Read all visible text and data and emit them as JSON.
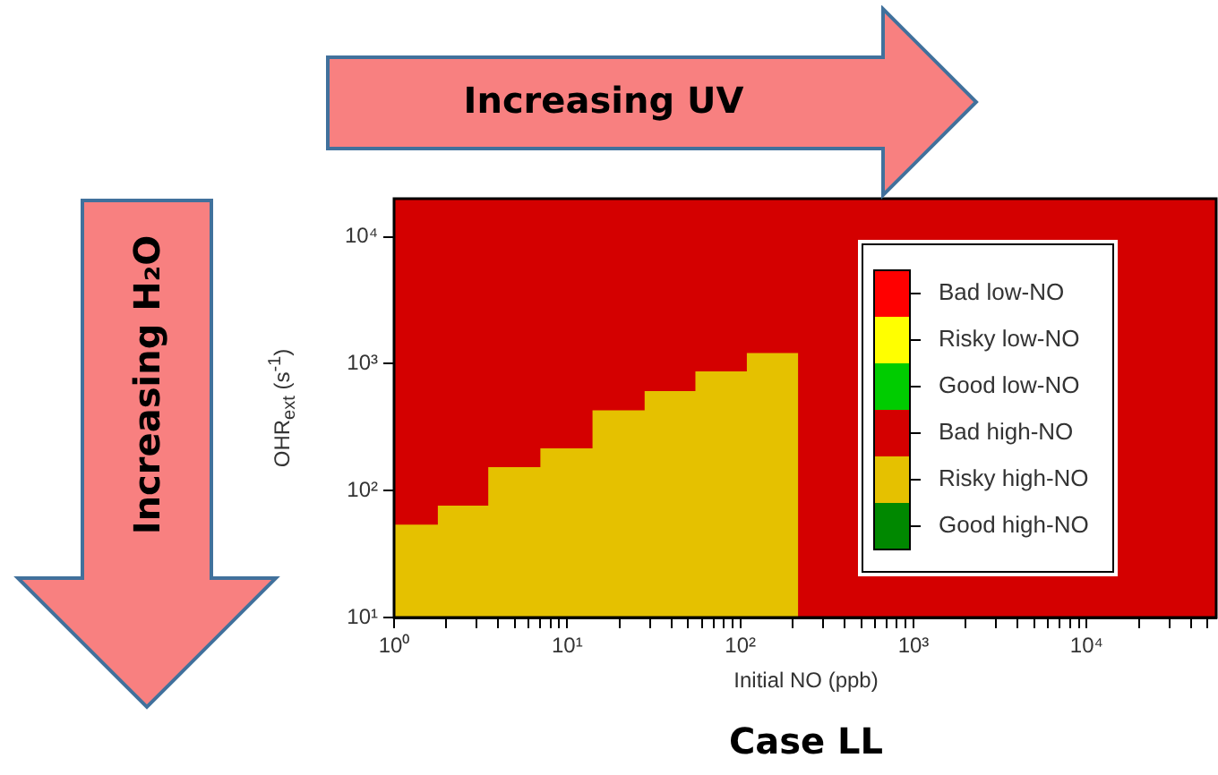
{
  "chart_data": {
    "type": "area",
    "title": "Case LL",
    "xlabel": "Initial NO (ppb)",
    "ylabel": "OHR$_{ext}$ (s$^{-1}$)",
    "annotations": [
      "Increasing UV",
      "Increasing H₂O"
    ],
    "log": "xy",
    "legend": "right",
    "xlim": [
      1,
      56000
    ],
    "ylim": [
      10,
      20000
    ],
    "xticks": [
      {
        "value": 1,
        "label": "10⁰"
      },
      {
        "value": 2,
        "label": null
      },
      {
        "value": 3,
        "label": null
      },
      {
        "value": 4,
        "label": null
      },
      {
        "value": 5,
        "label": null
      },
      {
        "value": 6,
        "label": null
      },
      {
        "value": 7,
        "label": null
      },
      {
        "value": 8,
        "label": null
      },
      {
        "value": 9,
        "label": null
      },
      {
        "value": 10,
        "label": "10¹"
      },
      {
        "value": 20,
        "label": null
      },
      {
        "value": 30,
        "label": null
      },
      {
        "value": 40,
        "label": null
      },
      {
        "value": 50,
        "label": null
      },
      {
        "value": 60,
        "label": null
      },
      {
        "value": 70,
        "label": null
      },
      {
        "value": 80,
        "label": null
      },
      {
        "value": 90,
        "label": null
      },
      {
        "value": 100,
        "label": "10²"
      },
      {
        "value": 200,
        "label": null
      },
      {
        "value": 300,
        "label": null
      },
      {
        "value": 400,
        "label": null
      },
      {
        "value": 500,
        "label": null
      },
      {
        "value": 600,
        "label": null
      },
      {
        "value": 700,
        "label": null
      },
      {
        "value": 800,
        "label": null
      },
      {
        "value": 900,
        "label": null
      },
      {
        "value": 1000,
        "label": "10³"
      },
      {
        "value": 2000,
        "label": null
      },
      {
        "value": 3000,
        "label": null
      },
      {
        "value": 4000,
        "label": null
      },
      {
        "value": 5000,
        "label": null
      },
      {
        "value": 6000,
        "label": null
      },
      {
        "value": 7000,
        "label": null
      },
      {
        "value": 8000,
        "label": null
      },
      {
        "value": 9000,
        "label": null
      },
      {
        "value": 10000,
        "label": "10⁴"
      },
      {
        "value": 20000,
        "label": null
      },
      {
        "value": 30000,
        "label": null
      },
      {
        "value": 40000,
        "label": null
      },
      {
        "value": 50000,
        "label": null
      }
    ],
    "yticks": [
      {
        "value": 10,
        "label": "10¹"
      },
      {
        "value": 100,
        "label": "10²"
      },
      {
        "value": 1000,
        "label": "10³"
      },
      {
        "value": 10000,
        "label": "10⁴"
      }
    ],
    "series": [
      {
        "name": "Bad low-NO",
        "color": "#ff0000"
      },
      {
        "name": "Risky low-NO",
        "color": "#ffff00"
      },
      {
        "name": "Good low-NO",
        "color": "#00cc00"
      },
      {
        "name": "Bad high-NO",
        "color": "#d40000"
      },
      {
        "name": "Risky high-NO",
        "color": "#e5c100",
        "x": [
          1,
          1.79,
          1.79,
          3.5,
          3.5,
          7,
          7,
          14,
          14,
          28,
          28,
          55,
          55,
          109,
          109,
          216,
          216
        ],
        "values": [
          54,
          54,
          76,
          76,
          153,
          153,
          215,
          215,
          430,
          430,
          608,
          608,
          869,
          869,
          1216,
          1216,
          10
        ]
      },
      {
        "name": "Good high-NO",
        "color": "#008800"
      }
    ],
    "bands": [
      {
        "axis": "y",
        "from": 10,
        "to": 20000,
        "color": "#d40000"
      }
    ]
  }
}
